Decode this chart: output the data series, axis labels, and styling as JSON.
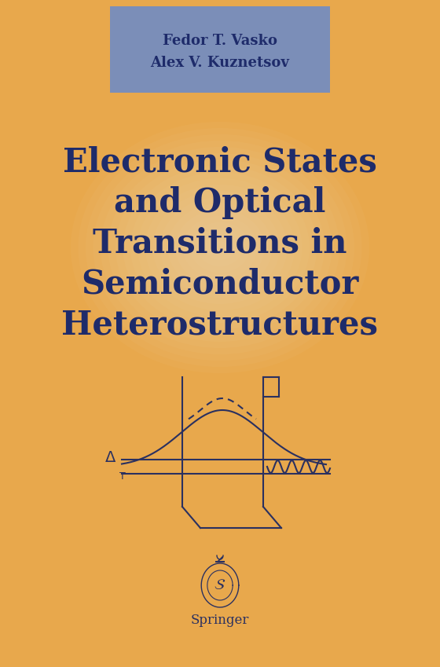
{
  "bg_color": "#E8A84C",
  "header_bg": "#7B8EB8",
  "header_text1": "Fedor T. Vasko",
  "header_text2": "Alex V. Kuznetsov",
  "header_text_color": "#1E2B6A",
  "title_text": "Electronic States\nand Optical\nTransitions in\nSemiconductor\nHeterostructures",
  "title_color": "#1E2B6A",
  "title_fontsize": 30,
  "diagram_color": "#2A3060",
  "springer_text": "Springer",
  "fig_width": 5.6,
  "fig_height": 8.49
}
